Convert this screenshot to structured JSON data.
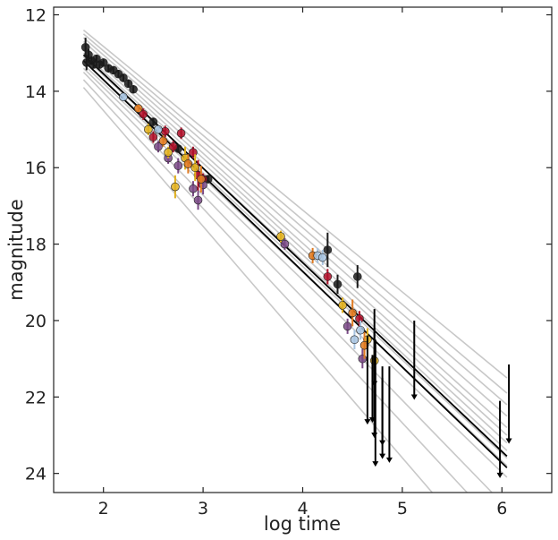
{
  "chart_data": {
    "type": "scatter",
    "title": "",
    "xlabel": "log time",
    "ylabel": "magnitude",
    "xlim": [
      1.5,
      6.5
    ],
    "ylim": [
      24.5,
      11.8
    ],
    "y_inverted": true,
    "grid": false,
    "legend": "none",
    "x_ticks": [
      2,
      3,
      4,
      5,
      6
    ],
    "y_ticks": [
      12,
      14,
      16,
      18,
      20,
      22,
      24
    ],
    "x_tick_labels": [
      "2",
      "3",
      "4",
      "5",
      "6"
    ],
    "y_tick_labels": [
      "12",
      "14",
      "16",
      "18",
      "20",
      "22",
      "24"
    ],
    "colors": {
      "model_lines": "#c8c8c8",
      "best_fit": "#000000",
      "black": "#1a1a1a",
      "red": "#b0102a",
      "purple": "#7a4a86",
      "gold": "#e0b01e",
      "orange": "#e07a20",
      "lightblue": "#a8c4e0"
    },
    "model_lines": [
      {
        "x": [
          1.8,
          6.05
        ],
        "y": [
          12.4,
          21.5
        ]
      },
      {
        "x": [
          1.8,
          6.05
        ],
        "y": [
          12.5,
          21.9
        ]
      },
      {
        "x": [
          1.8,
          6.05
        ],
        "y": [
          12.6,
          22.2
        ]
      },
      {
        "x": [
          1.8,
          6.05
        ],
        "y": [
          12.7,
          22.5
        ]
      },
      {
        "x": [
          1.8,
          6.05
        ],
        "y": [
          12.8,
          22.8
        ]
      },
      {
        "x": [
          1.8,
          6.05
        ],
        "y": [
          12.9,
          23.0
        ]
      },
      {
        "x": [
          1.8,
          6.05
        ],
        "y": [
          13.0,
          23.2
        ]
      },
      {
        "x": [
          1.8,
          6.05
        ],
        "y": [
          13.1,
          23.4
        ]
      },
      {
        "x": [
          1.8,
          6.05
        ],
        "y": [
          13.2,
          23.6
        ]
      },
      {
        "x": [
          1.8,
          6.05
        ],
        "y": [
          13.3,
          23.8
        ]
      },
      {
        "x": [
          1.8,
          6.05
        ],
        "y": [
          13.4,
          24.1
        ]
      },
      {
        "x": [
          1.8,
          5.9
        ],
        "y": [
          13.5,
          24.5
        ]
      },
      {
        "x": [
          1.8,
          5.65
        ],
        "y": [
          13.7,
          24.5
        ]
      },
      {
        "x": [
          1.8,
          5.3
        ],
        "y": [
          13.9,
          24.5
        ]
      }
    ],
    "best_fit_lines": [
      {
        "x": [
          1.8,
          6.05
        ],
        "y": [
          13.05,
          23.55
        ]
      },
      {
        "x": [
          1.8,
          6.05
        ],
        "y": [
          13.2,
          23.85
        ]
      }
    ],
    "series": [
      {
        "color": "black",
        "points": [
          [
            1.82,
            12.85,
            0.25
          ],
          [
            1.83,
            13.25,
            0.2
          ],
          [
            1.85,
            13.05,
            0.15
          ],
          [
            1.88,
            13.2,
            0.1
          ],
          [
            1.9,
            13.3,
            0.1
          ],
          [
            1.93,
            13.15,
            0.1
          ],
          [
            1.96,
            13.3,
            0.1
          ],
          [
            2.0,
            13.25,
            0.1
          ],
          [
            2.05,
            13.4,
            0.1
          ],
          [
            2.1,
            13.45,
            0.1
          ],
          [
            2.15,
            13.55,
            0.1
          ],
          [
            2.2,
            13.65,
            0.1
          ],
          [
            2.25,
            13.8,
            0.1
          ],
          [
            2.3,
            13.95,
            0.1
          ],
          [
            2.5,
            14.8,
            0.1
          ],
          [
            2.75,
            15.5,
            0.1
          ],
          [
            3.05,
            16.3,
            0.1
          ],
          [
            4.25,
            18.15,
            0.45
          ],
          [
            4.35,
            19.05,
            0.25
          ],
          [
            4.55,
            18.85,
            0.3
          ]
        ]
      },
      {
        "color": "red",
        "points": [
          [
            2.4,
            14.6,
            0.15
          ],
          [
            2.5,
            15.2,
            0.15
          ],
          [
            2.62,
            15.05,
            0.15
          ],
          [
            2.7,
            15.45,
            0.15
          ],
          [
            2.78,
            15.1,
            0.15
          ],
          [
            2.9,
            15.6,
            0.15
          ],
          [
            2.95,
            16.2,
            0.4
          ],
          [
            3.0,
            16.3,
            0.15
          ],
          [
            4.25,
            18.85,
            0.2
          ],
          [
            4.57,
            19.95,
            0.2
          ]
        ]
      },
      {
        "color": "purple",
        "points": [
          [
            2.55,
            15.45,
            0.15
          ],
          [
            2.65,
            15.75,
            0.15
          ],
          [
            2.75,
            15.95,
            0.2
          ],
          [
            2.9,
            16.55,
            0.2
          ],
          [
            2.95,
            16.85,
            0.25
          ],
          [
            3.0,
            16.45,
            0.25
          ],
          [
            3.82,
            18.0,
            0.15
          ],
          [
            4.45,
            20.15,
            0.2
          ],
          [
            4.6,
            21.0,
            0.25
          ]
        ]
      },
      {
        "color": "gold",
        "points": [
          [
            2.45,
            15.0,
            0.15
          ],
          [
            2.65,
            15.6,
            0.15
          ],
          [
            2.72,
            16.5,
            0.3
          ],
          [
            2.82,
            15.75,
            0.3
          ],
          [
            2.92,
            16.0,
            0.35
          ],
          [
            3.78,
            17.8,
            0.15
          ],
          [
            4.4,
            19.6,
            0.2
          ],
          [
            4.65,
            20.5,
            0.3
          ],
          [
            4.72,
            21.05,
            0.25
          ]
        ]
      },
      {
        "color": "orange",
        "points": [
          [
            2.35,
            14.45,
            0.1
          ],
          [
            2.6,
            15.3,
            0.15
          ],
          [
            2.85,
            15.9,
            0.25
          ],
          [
            2.98,
            16.3,
            0.35
          ],
          [
            4.1,
            18.3,
            0.2
          ],
          [
            4.5,
            19.8,
            0.35
          ],
          [
            4.62,
            20.65,
            0.35
          ]
        ]
      },
      {
        "color": "lightblue",
        "points": [
          [
            2.2,
            14.15,
            0.1
          ],
          [
            2.55,
            15.0,
            0.1
          ],
          [
            4.15,
            18.3,
            0.2
          ],
          [
            4.2,
            18.35,
            0.2
          ],
          [
            4.52,
            20.5,
            0.25
          ],
          [
            4.58,
            20.25,
            0.25
          ]
        ]
      }
    ],
    "upper_limits": [
      {
        "x": 4.65,
        "top": 20.4,
        "bottom": 22.7
      },
      {
        "x": 4.7,
        "top": 20.9,
        "bottom": 22.65
      },
      {
        "x": 4.72,
        "top": 19.7,
        "bottom": 23.05
      },
      {
        "x": 4.73,
        "top": 20.5,
        "bottom": 23.8
      },
      {
        "x": 4.72,
        "top": 20.2,
        "bottom": 21.7
      },
      {
        "x": 4.8,
        "top": 21.2,
        "bottom": 23.25
      },
      {
        "x": 4.8,
        "top": 21.5,
        "bottom": 23.6
      },
      {
        "x": 4.87,
        "top": 21.2,
        "bottom": 23.7
      },
      {
        "x": 5.12,
        "top": 20.0,
        "bottom": 22.05
      },
      {
        "x": 5.98,
        "top": 22.1,
        "bottom": 24.1
      },
      {
        "x": 6.07,
        "top": 21.15,
        "bottom": 23.2
      }
    ]
  }
}
